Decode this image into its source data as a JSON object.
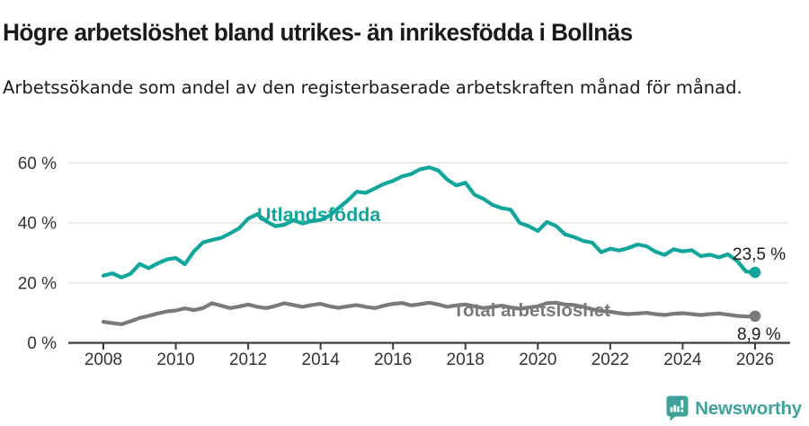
{
  "header": {
    "title": "Högre arbetslöshet bland utrikes- än inrikesfödda i Bollnäs",
    "subtitle": "Arbetssökande som andel av den registerbaserade arbetskraften månad för månad."
  },
  "footer": {
    "brand": "Newsworthy"
  },
  "colors": {
    "utlandsfodda": "#10a69c",
    "total": "#7a7a7a",
    "grid": "#e0e0e0",
    "axis": "#3c3c3c",
    "tick_text": "#333333",
    "value_text": "#1a1a1a",
    "brand": "#3fa29a"
  },
  "chart_data": {
    "type": "line",
    "title": "Högre arbetslöshet bland utrikes- än inrikesfödda i Bollnäs",
    "subtitle": "Arbetssökande som andel av den registerbaserade arbetskraften månad för månad.",
    "xlabel": "",
    "ylabel": "",
    "grid": "horizontal",
    "legend_position": "inline-labels",
    "x_unit": "year",
    "y_unit": "%",
    "xlim": [
      2008,
      2026.3
    ],
    "ylim": [
      0,
      65
    ],
    "x_ticks": [
      2008,
      2010,
      2012,
      2014,
      2016,
      2018,
      2020,
      2022,
      2024,
      2026
    ],
    "y_ticks": [
      {
        "v": 0,
        "label": "0 %"
      },
      {
        "v": 20,
        "label": "20 %"
      },
      {
        "v": 40,
        "label": "40 %"
      },
      {
        "v": 60,
        "label": "60 %"
      }
    ],
    "x_start": 2008.0,
    "x_step": 0.25,
    "series": [
      {
        "name": "Utlandsfödda",
        "color": "#10a69c",
        "end_label": "23,5 %",
        "end_value": 23.5,
        "values": [
          22.4,
          23.2,
          21.8,
          23.0,
          26.3,
          24.9,
          26.5,
          27.8,
          28.3,
          26.2,
          30.5,
          33.5,
          34.3,
          35.0,
          36.5,
          38.2,
          41.4,
          42.9,
          40.5,
          38.9,
          39.4,
          40.9,
          39.8,
          40.6,
          41.0,
          42.5,
          45.0,
          47.5,
          50.4,
          50.0,
          51.5,
          53.0,
          54.0,
          55.5,
          56.3,
          57.9,
          58.5,
          57.5,
          54.4,
          52.5,
          53.4,
          49.4,
          48.0,
          46.0,
          44.9,
          44.4,
          40.0,
          38.9,
          37.3,
          40.3,
          39.0,
          36.2,
          35.3,
          34.0,
          33.4,
          30.2,
          31.4,
          30.8,
          31.6,
          32.8,
          32.2,
          30.4,
          29.3,
          31.2,
          30.5,
          30.9,
          28.9,
          29.4,
          28.5,
          29.5,
          27.4,
          23.8,
          23.5
        ]
      },
      {
        "name": "Total arbetslöshet",
        "color": "#7a7a7a",
        "end_label": "8,9 %",
        "end_value": 8.9,
        "values": [
          7.0,
          6.6,
          6.2,
          7.2,
          8.3,
          9.0,
          9.8,
          10.5,
          10.8,
          11.5,
          10.9,
          11.6,
          13.2,
          12.4,
          11.6,
          12.1,
          12.8,
          12.0,
          11.6,
          12.3,
          13.2,
          12.6,
          12.0,
          12.6,
          13.0,
          12.2,
          11.7,
          12.2,
          12.6,
          12.0,
          11.6,
          12.4,
          13.0,
          13.3,
          12.5,
          12.9,
          13.4,
          12.8,
          12.0,
          12.5,
          12.8,
          12.2,
          11.6,
          12.0,
          12.4,
          11.8,
          11.4,
          11.8,
          12.2,
          13.2,
          13.4,
          12.8,
          12.6,
          12.0,
          11.2,
          10.6,
          10.4,
          9.9,
          9.6,
          9.8,
          10.0,
          9.6,
          9.3,
          9.7,
          9.9,
          9.6,
          9.3,
          9.6,
          9.8,
          9.4,
          9.0,
          8.8,
          8.9
        ]
      }
    ]
  }
}
